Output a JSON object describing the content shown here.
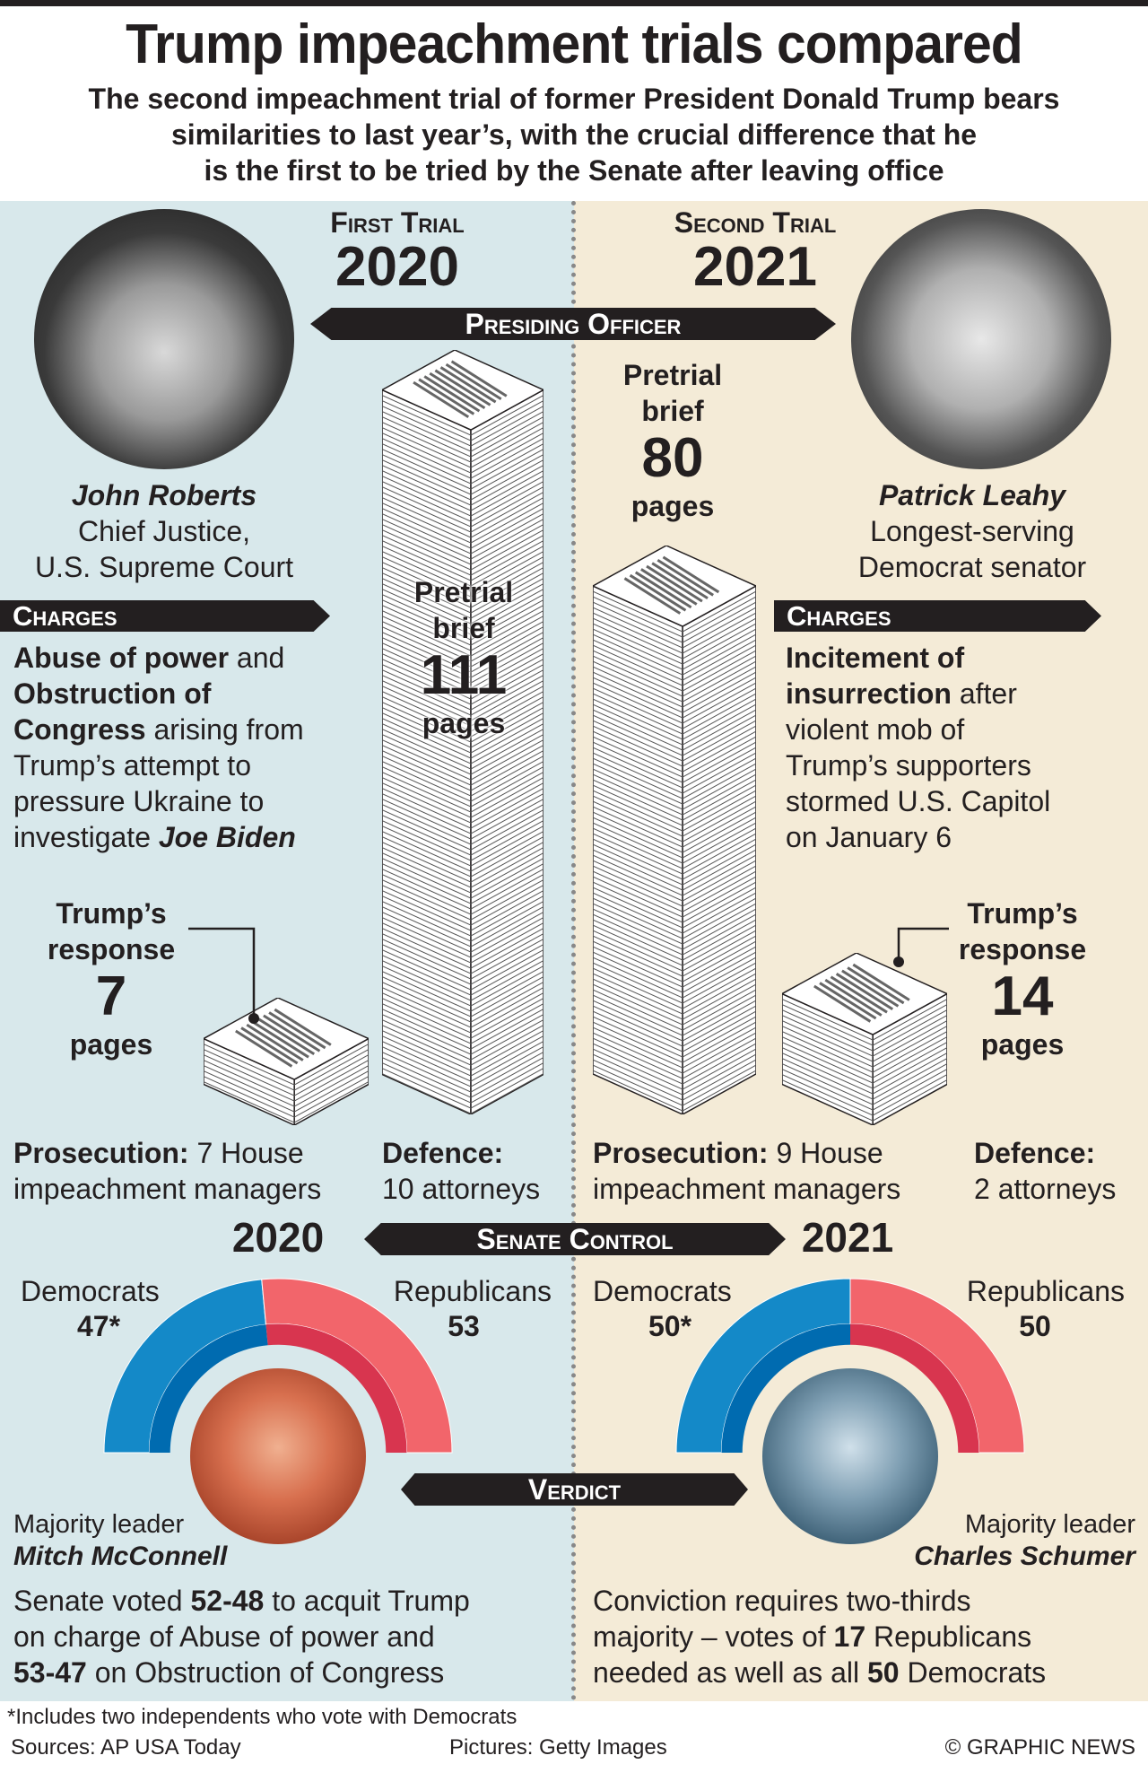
{
  "title": "Trump impeachment trials compared",
  "subtitle": [
    "The second impeachment trial of former President Donald Trump bears",
    "similarities to last year’s, with the crucial difference that he",
    "is the first to be tried by the Senate after leaving office"
  ],
  "first": {
    "label": "First Trial",
    "year": "2020"
  },
  "second": {
    "label": "Second Trial",
    "year": "2021"
  },
  "banners": {
    "presiding": "Presiding Officer",
    "charges": "Charges",
    "senate": "Senate Control",
    "verdict": "Verdict"
  },
  "officer_left": {
    "name": "John Roberts",
    "role": [
      "Chief Justice,",
      "U.S. Supreme Court"
    ]
  },
  "officer_right": {
    "name": "Patrick Leahy",
    "role": [
      "Longest-serving",
      "Democrat senator"
    ]
  },
  "charges_left": {
    "b1": "Abuse of power",
    "t1": " and",
    "b2": "Obstruction of",
    "b3": "Congress",
    "t3": " arising from",
    "l4": "Trump’s attempt to",
    "l5": "pressure Ukraine to",
    "l6": "investigate ",
    "bi6": "Joe Biden"
  },
  "charges_right": {
    "b1": "Incitement of",
    "b2": "insurrection",
    "t2": " after",
    "l3": "violent mob of",
    "l4": "Trump’s supporters",
    "l5": "stormed U.S. Capitol",
    "l6": "on January 6"
  },
  "brief_left": {
    "l1": "Pretrial",
    "l2": "brief",
    "pages": 111,
    "unit": "pages"
  },
  "brief_right": {
    "l1": "Pretrial",
    "l2": "brief",
    "pages": 80,
    "unit": "pages"
  },
  "response_left": {
    "l1": "Trump’s",
    "l2": "response",
    "pages": 7,
    "unit": "pages"
  },
  "response_right": {
    "l1": "Trump’s",
    "l2": "response",
    "pages": 14,
    "unit": "pages"
  },
  "teams_left": {
    "pros_label": "Prosecution:",
    "pros_1": " 7 House",
    "pros_2": "impeachment managers",
    "def_label": "Defence:",
    "def_2": "10 attorneys"
  },
  "teams_right": {
    "pros_label": "Prosecution:",
    "pros_1": " 9 House",
    "pros_2": "impeachment managers",
    "def_label": "Defence:",
    "def_2": "2 attorneys"
  },
  "senate_left": {
    "year": "2020",
    "dem_label": "Democrats",
    "dem": "47*",
    "rep_label": "Republicans",
    "rep": "53",
    "dem_n": 47,
    "rep_n": 53,
    "leader_role": "Majority leader",
    "leader": "Mitch McConnell"
  },
  "senate_right": {
    "year": "2021",
    "dem_label": "Democrats",
    "dem": "50*",
    "rep_label": "Republicans",
    "rep": "50",
    "dem_n": 50,
    "rep_n": 50,
    "leader_role": "Majority leader",
    "leader": "Charles Schumer"
  },
  "verdict_left": {
    "t1": "Senate voted ",
    "b1": "52-48",
    "t1b": " to acquit Trump",
    "l2": "on charge of Abuse of power and",
    "b3": "53-47",
    "t3": " on Obstruction of Congress"
  },
  "verdict_right": {
    "l1": "Conviction requires two-thirds",
    "t2": "majority – votes of ",
    "b2": "17",
    "t2b": " Republicans",
    "t3": "needed as well as all ",
    "b3": "50",
    "t3b": " Democrats"
  },
  "footer": {
    "note": "*Includes two independents who vote with Democrats",
    "sources": "Sources: AP USA Today",
    "pictures": "Pictures: Getty Images",
    "credit": "© GRAPHIC NEWS"
  },
  "colors": {
    "dem": "#1489c8",
    "dem_dark": "#006bb0",
    "rep": "#f2656b",
    "rep_dark": "#d8354f",
    "panel_left": "#d8e8eb",
    "panel_right": "#f4ebd7"
  }
}
